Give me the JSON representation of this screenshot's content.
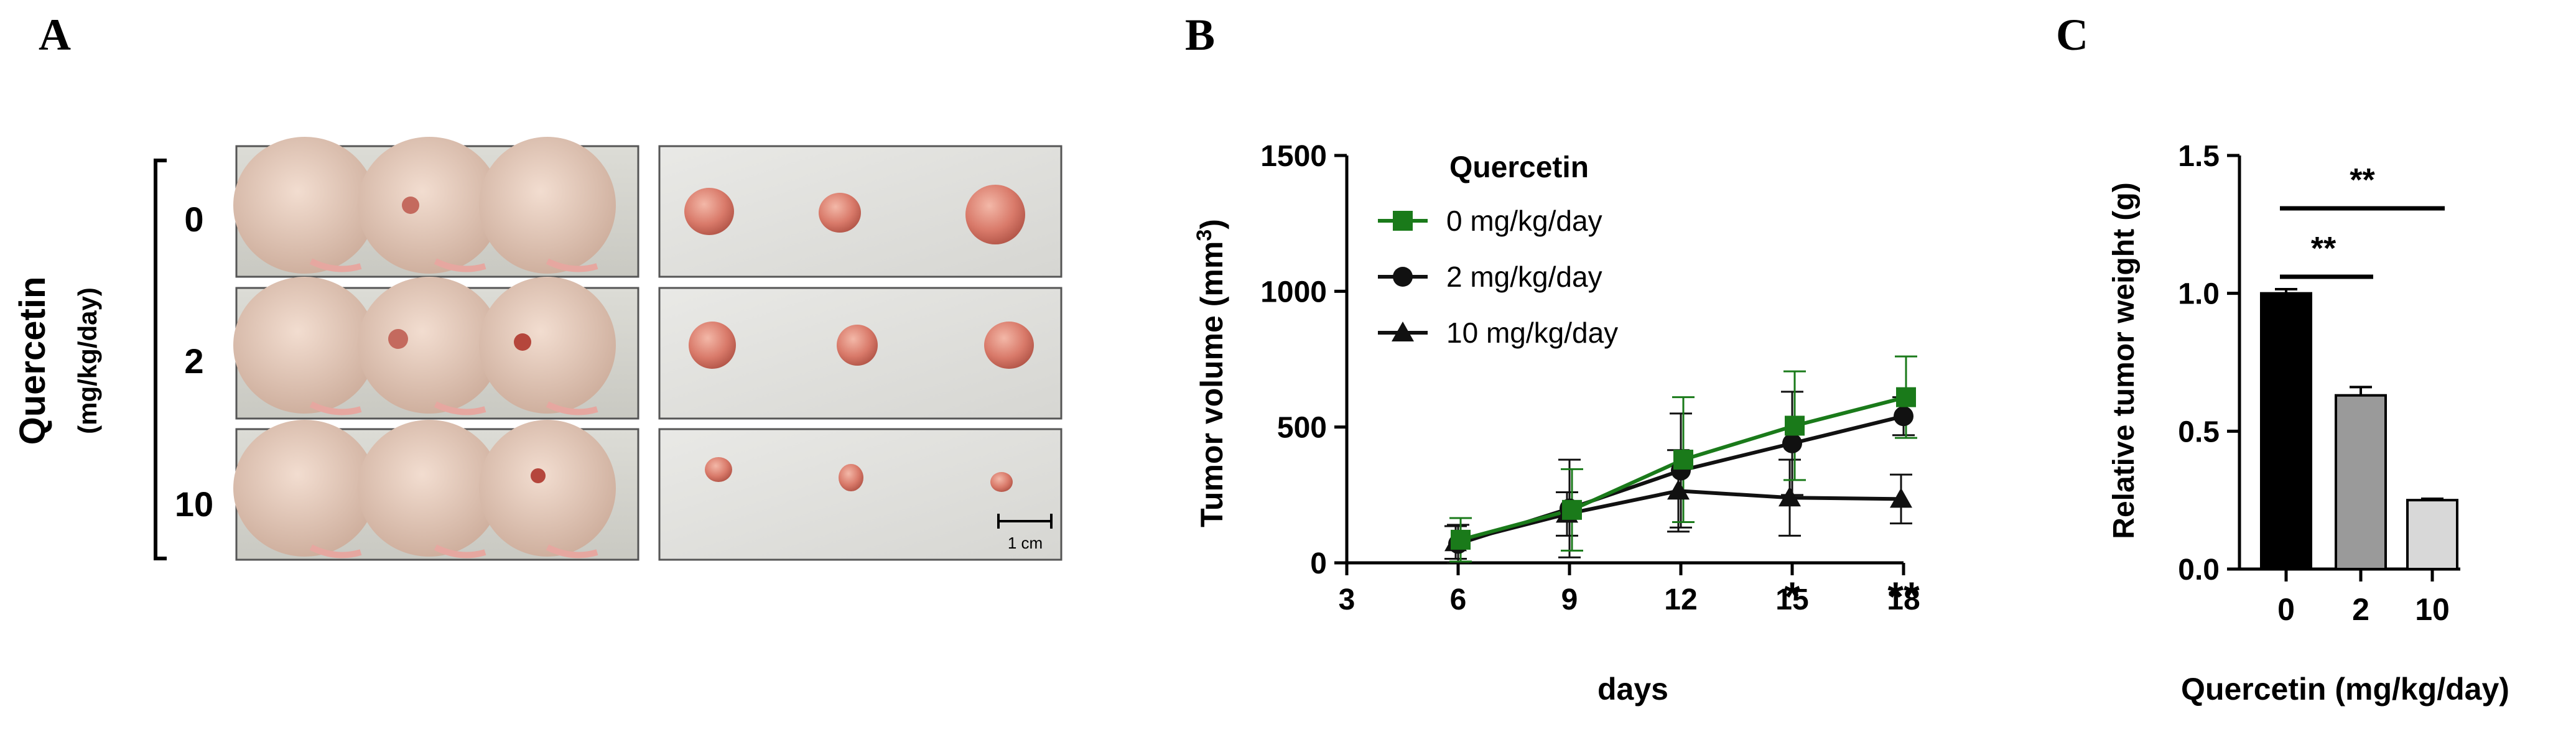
{
  "panel_a": {
    "label": "A",
    "ylabel_main": "Quercetin",
    "ylabel_unit": "(mg/kg/day)",
    "row_labels": [
      "0",
      "2",
      "10"
    ],
    "scalebar_label": "1 cm",
    "photo_description_hidden": ""
  },
  "chart_data": [
    {
      "type": "line",
      "panel_label": "B",
      "title": "",
      "xlabel": "days",
      "ylabel": "Tumor volume (mm3)",
      "xlim": [
        3,
        18
      ],
      "ylim": [
        0,
        1500
      ],
      "xticks": [
        3,
        6,
        9,
        12,
        15,
        18
      ],
      "yticks": [
        0,
        500,
        1000,
        1500
      ],
      "legend_title": "Quercetin",
      "x": [
        6,
        9,
        12,
        15,
        18
      ],
      "series": [
        {
          "name": "0 mg/kg/day",
          "marker": "square",
          "color": "#1a7a1a",
          "values": [
            85,
            195,
            380,
            505,
            610
          ],
          "errors": [
            80,
            150,
            230,
            200,
            150
          ]
        },
        {
          "name": "2 mg/kg/day",
          "marker": "circle",
          "color": "#111111",
          "values": [
            70,
            200,
            340,
            440,
            540
          ],
          "errors": [
            70,
            180,
            210,
            190,
            70
          ]
        },
        {
          "name": "10 mg/kg/day",
          "marker": "triangle",
          "color": "#111111",
          "values": [
            75,
            180,
            265,
            240,
            235
          ],
          "errors": [
            60,
            80,
            150,
            140,
            90
          ]
        }
      ],
      "annotations": [
        {
          "x": 15,
          "text": "*"
        },
        {
          "x": 18,
          "text": "**"
        }
      ]
    },
    {
      "type": "bar",
      "panel_label": "C",
      "title": "",
      "xlabel": "Quercetin (mg/kg/day)",
      "ylabel": "Relative tumor weight (g)",
      "categories": [
        "0",
        "2",
        "10"
      ],
      "values": [
        1.0,
        0.63,
        0.25
      ],
      "errors": [
        0.015,
        0.03,
        0.005
      ],
      "colors": [
        "#000000",
        "#9a9a9a",
        "#d8d8d8"
      ],
      "ylim": [
        0.0,
        1.5
      ],
      "yticks": [
        "0.0",
        "0.5",
        "1.0",
        "1.5"
      ],
      "significance": [
        {
          "from": "0",
          "to": "2",
          "text": "**"
        },
        {
          "from": "0",
          "to": "10",
          "text": "**"
        }
      ]
    }
  ]
}
